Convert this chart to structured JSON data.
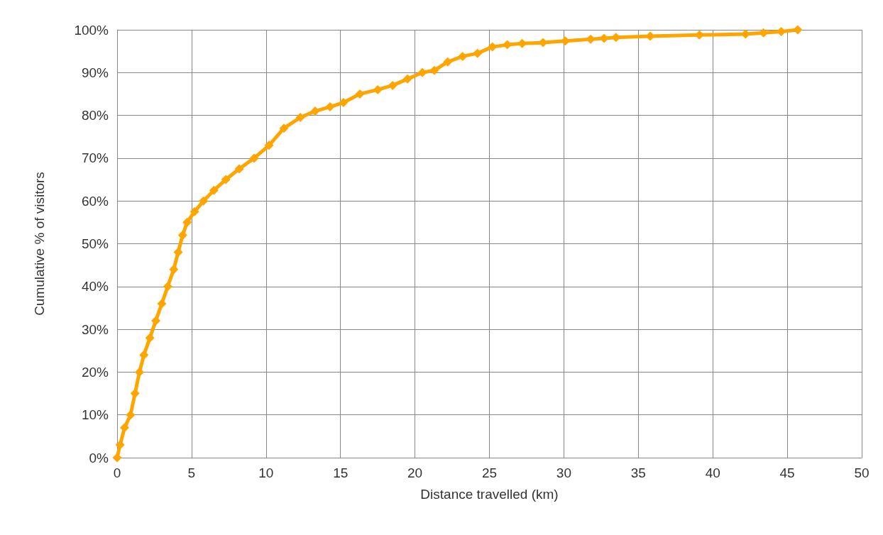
{
  "chart_data": {
    "type": "line",
    "xlabel": "Distance travelled (km)",
    "ylabel": "Cumulative % of visitors",
    "x": [
      0,
      0.2,
      0.5,
      0.9,
      1.2,
      1.5,
      1.8,
      2.2,
      2.6,
      3,
      3.4,
      3.8,
      4.1,
      4.4,
      4.7,
      5.2,
      5.8,
      6.5,
      7.3,
      8.2,
      9.2,
      10.2,
      11.2,
      12.3,
      13.3,
      14.3,
      15.2,
      16.3,
      17.5,
      18.5,
      19.5,
      20.5,
      21.3,
      22.2,
      23.2,
      24.2,
      25.2,
      26.2,
      27.2,
      28.6,
      30.1,
      31.8,
      32.7,
      33.5,
      35.8,
      39.1,
      42.2,
      43.4,
      44.6,
      45.7
    ],
    "series": [
      {
        "color": "#ffa500",
        "values": [
          0,
          3,
          7,
          10,
          15,
          20,
          24,
          28,
          32,
          36,
          40,
          44,
          48,
          52,
          55,
          57.5,
          60,
          62.5,
          65,
          67.5,
          70,
          73,
          77,
          79.5,
          81,
          82,
          83,
          85,
          86,
          87,
          88.5,
          90,
          90.5,
          92.5,
          93.8,
          94.5,
          96,
          96.5,
          96.8,
          97,
          97.4,
          97.8,
          98,
          98.2,
          98.5,
          98.8,
          99,
          99.3,
          99.6,
          100
        ]
      }
    ],
    "xlim": [
      0,
      50
    ],
    "xticks": [
      0,
      5,
      10,
      15,
      20,
      25,
      30,
      35,
      40,
      45,
      50
    ],
    "ylim": [
      0,
      100
    ],
    "yticks": [
      {
        "value": 0,
        "label": "0%"
      },
      {
        "value": 10,
        "label": "10%"
      },
      {
        "value": 20,
        "label": "20%"
      },
      {
        "value": 30,
        "label": "30%"
      },
      {
        "value": 40,
        "label": "40%"
      },
      {
        "value": 50,
        "label": "50%"
      },
      {
        "value": 60,
        "label": "60%"
      },
      {
        "value": 70,
        "label": "70%"
      },
      {
        "value": 80,
        "label": "80%"
      },
      {
        "value": 90,
        "label": "90%"
      },
      {
        "value": 100,
        "label": "100%"
      }
    ],
    "grid": true,
    "marker": "diamond",
    "line_style": "solid"
  }
}
